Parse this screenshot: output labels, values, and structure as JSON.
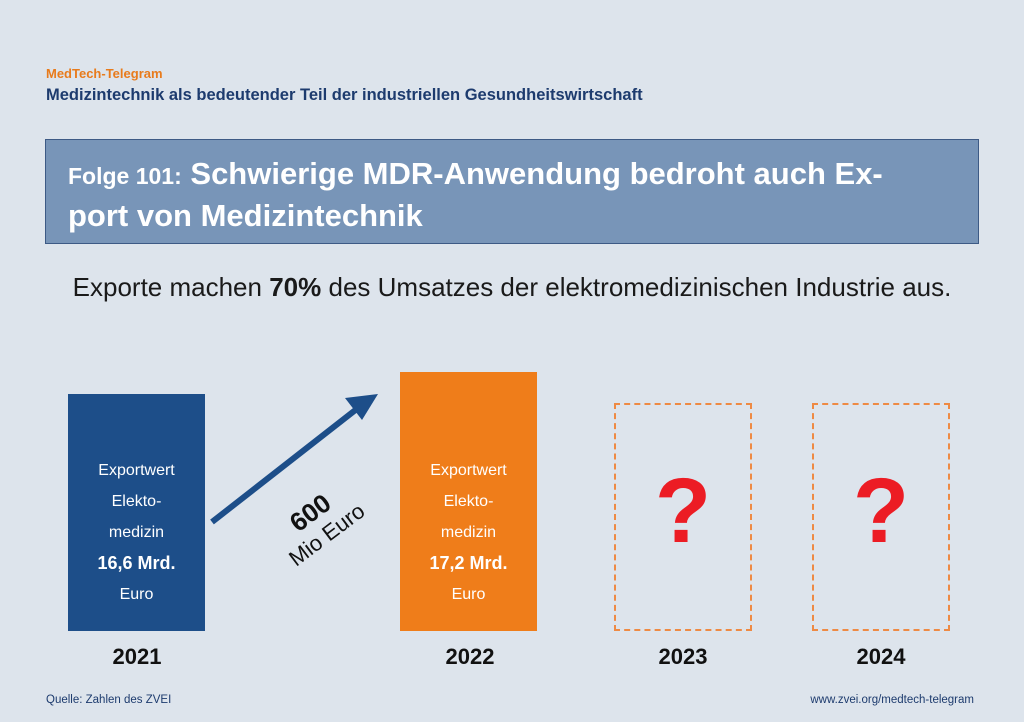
{
  "brand": "MedTech-Telegram",
  "subtitle": "Medizintechnik als bedeutender Teil der industriellen Gesundheitswirtschaft",
  "title": {
    "prefix": "Folge 101:",
    "line1": "Schwierige MDR-Anwendung bedroht auch Ex-",
    "line2": "port von Medizintechnik"
  },
  "headline": {
    "before": "Exporte machen ",
    "highlight": "70%",
    "after": " des Umsatzes der elektromedizinischen Industrie aus."
  },
  "chart_data": {
    "type": "bar",
    "categories": [
      "2021",
      "2022",
      "2023",
      "2024"
    ],
    "values": [
      16.6,
      17.2,
      null,
      null
    ],
    "unit": "Mrd. Euro",
    "bars": [
      {
        "year": "2021",
        "line1": "Exportwert",
        "line2": "Elekto-",
        "line3": "medizin",
        "value_label": "16,6 Mrd.",
        "unit_label": "Euro",
        "color": "#1d4e89"
      },
      {
        "year": "2022",
        "line1": "Exportwert",
        "line2": "Elekto-",
        "line3": "medizin",
        "value_label": "17,2 Mrd.",
        "unit_label": "Euro",
        "color": "#ef7d1a"
      }
    ],
    "unknown": [
      {
        "year": "2023",
        "symbol": "?"
      },
      {
        "year": "2024",
        "symbol": "?"
      }
    ],
    "annotation": {
      "value": "600",
      "unit": "Mio Euro"
    },
    "colors": {
      "bar_2021": "#1d4e89",
      "bar_2022": "#ef7d1a",
      "placeholder_border": "#ee8a44",
      "question_mark": "#ec1c24",
      "arrow": "#1d4e89"
    }
  },
  "footer": {
    "source": "Quelle: Zahlen des ZVEI",
    "url": "www.zvei.org/medtech-telegram"
  }
}
